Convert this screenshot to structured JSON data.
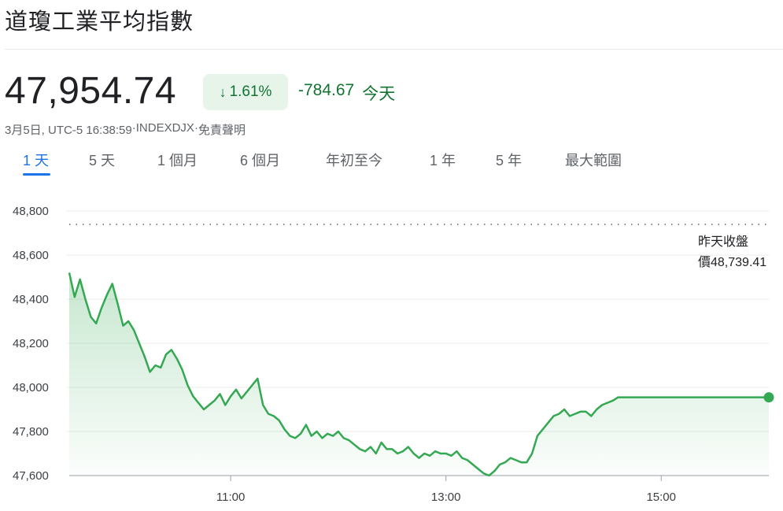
{
  "header": {
    "title": "道瓊工業平均指數",
    "price": "47,954.74",
    "pct_arrow": "↓",
    "pct_change": "1.61%",
    "abs_change": "-784.67",
    "period_label": "今天",
    "timestamp": "3月5日, UTC-5 16:38:59",
    "separator": " · ",
    "exchange": "INDEXDJX",
    "disclaimer_sep": " ·",
    "disclaimer": "免責聲明"
  },
  "tabs": [
    {
      "label": "1 天",
      "active": true
    },
    {
      "label": "5 天",
      "active": false
    },
    {
      "label": "1 個月",
      "active": false
    },
    {
      "label": "6 個月",
      "active": false
    },
    {
      "label": "年初至今",
      "active": false
    },
    {
      "label": "1 年",
      "active": false
    },
    {
      "label": "5 年",
      "active": false
    },
    {
      "label": "最大範圍",
      "active": false
    }
  ],
  "colors": {
    "line": "#34a853",
    "fill_top": "#34a853",
    "positive_text": "#137333",
    "accent_blue": "#1a73e8",
    "grid": "#ebebeb"
  },
  "chart_data": {
    "type": "area",
    "x_unit": "time",
    "x_range": [
      "09:30",
      "16:00"
    ],
    "ylim": [
      47600,
      48800
    ],
    "yticks": [
      48800,
      48600,
      48400,
      48200,
      48000,
      47800,
      47600
    ],
    "ytick_labels": [
      "48,800",
      "48,600",
      "48,400",
      "48,200",
      "48,000",
      "47,800",
      "47,600"
    ],
    "xticks": [
      "11:00",
      "13:00",
      "15:00"
    ],
    "previous_close": 48739.41,
    "previous_close_label_line1": "昨天收盤",
    "previous_close_label_line2": "價48,739.41",
    "last_value": 47954.74,
    "series": [
      {
        "x": [
          "09:30",
          "09:33",
          "09:36",
          "09:39",
          "09:42",
          "09:45",
          "09:48",
          "09:51",
          "09:54",
          "09:57",
          "10:00",
          "10:03",
          "10:06",
          "10:09",
          "10:12",
          "10:15",
          "10:18",
          "10:21",
          "10:24",
          "10:27",
          "10:30",
          "10:33",
          "10:36",
          "10:39",
          "10:42",
          "10:45",
          "10:48",
          "10:51",
          "10:54",
          "10:57",
          "11:00",
          "11:03",
          "11:06",
          "11:09",
          "11:12",
          "11:15",
          "11:18",
          "11:21",
          "11:24",
          "11:27",
          "11:30",
          "11:33",
          "11:36",
          "11:39",
          "11:42",
          "11:45",
          "11:48",
          "11:51",
          "11:54",
          "11:57",
          "12:00",
          "12:03",
          "12:06",
          "12:09",
          "12:12",
          "12:15",
          "12:18",
          "12:21",
          "12:24",
          "12:27",
          "12:30",
          "12:33",
          "12:36",
          "12:39",
          "12:42",
          "12:45",
          "12:48",
          "12:51",
          "12:54",
          "12:57",
          "13:00",
          "13:03",
          "13:06",
          "13:09",
          "13:12",
          "13:15",
          "13:18",
          "13:21",
          "13:24",
          "13:27",
          "13:30",
          "13:33",
          "13:36",
          "13:39",
          "13:42",
          "13:45",
          "13:48",
          "13:51",
          "13:54",
          "13:57",
          "14:00",
          "14:03",
          "14:06",
          "14:09",
          "14:12",
          "14:15",
          "14:18",
          "14:21",
          "14:24",
          "14:27",
          "14:30",
          "14:33",
          "14:36",
          "14:39",
          "14:42",
          "14:45",
          "14:48",
          "14:51",
          "14:54",
          "14:57",
          "15:00",
          "15:03",
          "15:06",
          "15:09",
          "15:12",
          "15:15",
          "15:18",
          "15:21",
          "15:24",
          "15:27",
          "15:30",
          "15:33",
          "15:36",
          "15:39",
          "15:42",
          "15:45",
          "15:48",
          "15:51",
          "15:54",
          "15:57",
          "16:00"
        ],
        "values": [
          48520,
          48410,
          48490,
          48400,
          48320,
          48290,
          48360,
          48420,
          48470,
          48380,
          48280,
          48300,
          48260,
          48200,
          48140,
          48070,
          48100,
          48090,
          48150,
          48170,
          48130,
          48080,
          48010,
          47960,
          47930,
          47900,
          47920,
          47940,
          47970,
          47920,
          47960,
          47990,
          47950,
          47980,
          48010,
          48040,
          47920,
          47880,
          47870,
          47850,
          47810,
          47780,
          47770,
          47790,
          47830,
          47780,
          47800,
          47770,
          47790,
          47780,
          47800,
          47770,
          47760,
          47740,
          47720,
          47710,
          47730,
          47700,
          47750,
          47720,
          47720,
          47700,
          47710,
          47730,
          47700,
          47680,
          47700,
          47690,
          47710,
          47700,
          47700,
          47690,
          47710,
          47680,
          47670,
          47650,
          47630,
          47610,
          47600,
          47620,
          47650,
          47660,
          47680,
          47670,
          47660,
          47660,
          47700,
          47780,
          47810,
          47840,
          47870,
          47880,
          47900,
          47870,
          47880,
          47890,
          47890,
          47870,
          47900,
          47920,
          47930,
          47940,
          47955,
          47955,
          47955,
          47955,
          47955,
          47955,
          47955,
          47955,
          47955,
          47955,
          47955,
          47955,
          47955,
          47955,
          47955,
          47955,
          47955,
          47955,
          47955,
          47955,
          47955,
          47955,
          47955,
          47955,
          47955,
          47955,
          47955,
          47955,
          47955
        ]
      }
    ]
  }
}
